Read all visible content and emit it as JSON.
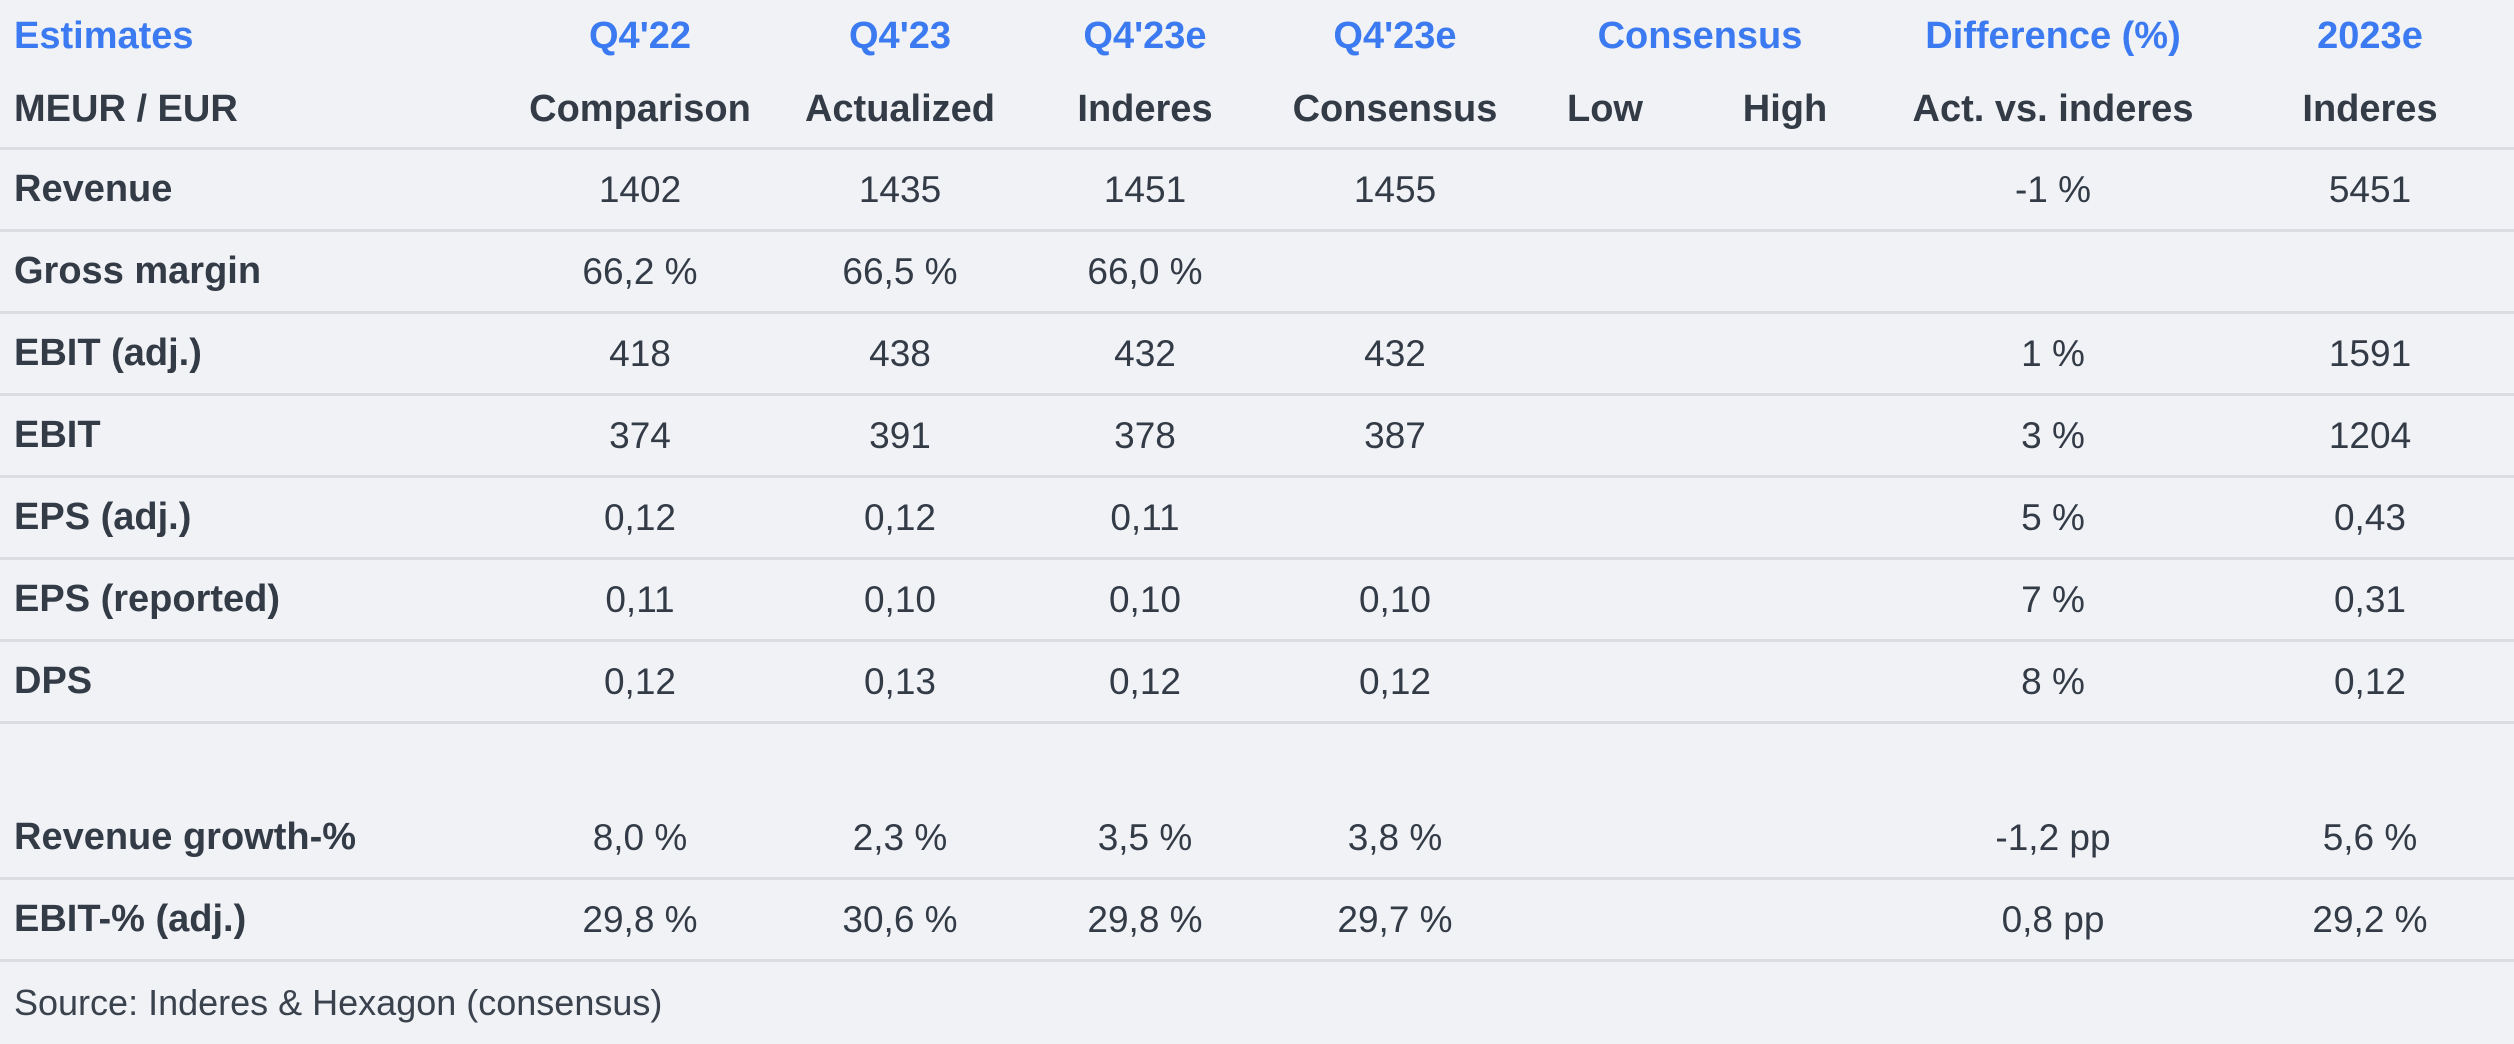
{
  "colors": {
    "accent_blue": "#3b7af0",
    "text_dark": "#333b47",
    "background": "#f1f2f6",
    "divider": "#dcdde2"
  },
  "chart_data": {
    "type": "table",
    "title": "Estimates",
    "unit": "MEUR / EUR",
    "columns": [
      "Q4'22 Comparison",
      "Q4'23 Actualized",
      "Q4'23e Inderes",
      "Q4'23e Consensus",
      "Consensus Low",
      "Consensus High",
      "Difference (%) Act. vs. inderes",
      "2023e Inderes"
    ],
    "rows": [
      {
        "label": "Revenue",
        "values": [
          "1402",
          "1435",
          "1451",
          "1455",
          "",
          "",
          "-1 %",
          "5451"
        ]
      },
      {
        "label": "Gross margin",
        "values": [
          "66,2 %",
          "66,5 %",
          "66,0 %",
          "",
          "",
          "",
          "",
          ""
        ]
      },
      {
        "label": "EBIT (adj.)",
        "values": [
          "418",
          "438",
          "432",
          "432",
          "",
          "",
          "1 %",
          "1591"
        ]
      },
      {
        "label": "EBIT",
        "values": [
          "374",
          "391",
          "378",
          "387",
          "",
          "",
          "3 %",
          "1204"
        ]
      },
      {
        "label": "EPS (adj.)",
        "values": [
          "0,12",
          "0,12",
          "0,11",
          "",
          "",
          "",
          "5 %",
          "0,43"
        ]
      },
      {
        "label": "EPS (reported)",
        "values": [
          "0,11",
          "0,10",
          "0,10",
          "0,10",
          "",
          "",
          "7 %",
          "0,31"
        ]
      },
      {
        "label": "DPS",
        "values": [
          "0,12",
          "0,13",
          "0,12",
          "0,12",
          "",
          "",
          "8 %",
          "0,12"
        ]
      },
      {
        "label": "Revenue growth-%",
        "values": [
          "8,0 %",
          "2,3 %",
          "3,5 %",
          "3,8 %",
          "",
          "",
          "-1,2 pp",
          "5,6 %"
        ]
      },
      {
        "label": "EBIT-% (adj.)",
        "values": [
          "29,8 %",
          "30,6 %",
          "29,8 %",
          "29,7 %",
          "",
          "",
          "0,8 pp",
          "29,2 %"
        ]
      }
    ],
    "source": "Source: Inderes & Hexagon  (consensus)"
  },
  "table": {
    "header_row1": {
      "title": "Estimates",
      "q422": "Q4'22",
      "q423": "Q4'23",
      "q423e_inderes": "Q4'23e",
      "q423e_consensus": "Q4'23e",
      "consensus_group": "Consensus",
      "difference": "Difference (%)",
      "y2023e": "2023e"
    },
    "header_row2": {
      "unit": "MEUR / EUR",
      "q422": "Comparison",
      "q423": "Actualized",
      "q423e_inderes": "Inderes",
      "q423e_consensus": "Consensus",
      "low": "Low",
      "high": "High",
      "difference": "Act. vs. inderes",
      "y2023e": "Inderes"
    },
    "rows": [
      {
        "label": "Revenue",
        "comparison": "1402",
        "actualized": "1435",
        "inderes": "1451",
        "consensus": "1455",
        "low": "",
        "high": "",
        "difference": "-1 %",
        "y2023e": "5451"
      },
      {
        "label": "Gross margin",
        "comparison": "66,2 %",
        "actualized": "66,5 %",
        "inderes": "66,0 %",
        "consensus": "",
        "low": "",
        "high": "",
        "difference": "",
        "y2023e": ""
      },
      {
        "label": "EBIT (adj.)",
        "comparison": "418",
        "actualized": "438",
        "inderes": "432",
        "consensus": "432",
        "low": "",
        "high": "",
        "difference": "1 %",
        "y2023e": "1591"
      },
      {
        "label": "EBIT",
        "comparison": "374",
        "actualized": "391",
        "inderes": "378",
        "consensus": "387",
        "low": "",
        "high": "",
        "difference": "3 %",
        "y2023e": "1204"
      },
      {
        "label": "EPS (adj.)",
        "comparison": "0,12",
        "actualized": "0,12",
        "inderes": "0,11",
        "consensus": "",
        "low": "",
        "high": "",
        "difference": "5 %",
        "y2023e": "0,43"
      },
      {
        "label": "EPS (reported)",
        "comparison": "0,11",
        "actualized": "0,10",
        "inderes": "0,10",
        "consensus": "0,10",
        "low": "",
        "high": "",
        "difference": "7 %",
        "y2023e": "0,31"
      },
      {
        "label": "DPS",
        "comparison": "0,12",
        "actualized": "0,13",
        "inderes": "0,12",
        "consensus": "0,12",
        "low": "",
        "high": "",
        "difference": "8 %",
        "y2023e": "0,12"
      },
      {
        "label": "Revenue growth-%",
        "comparison": "8,0 %",
        "actualized": "2,3 %",
        "inderes": "3,5 %",
        "consensus": "3,8 %",
        "low": "",
        "high": "",
        "difference": "-1,2 pp",
        "y2023e": "5,6 %"
      },
      {
        "label": "EBIT-% (adj.)",
        "comparison": "29,8 %",
        "actualized": "30,6 %",
        "inderes": "29,8 %",
        "consensus": "29,7 %",
        "low": "",
        "high": "",
        "difference": "0,8 pp",
        "y2023e": "29,2 %"
      }
    ],
    "source": "Source: Inderes & Hexagon  (consensus)"
  }
}
